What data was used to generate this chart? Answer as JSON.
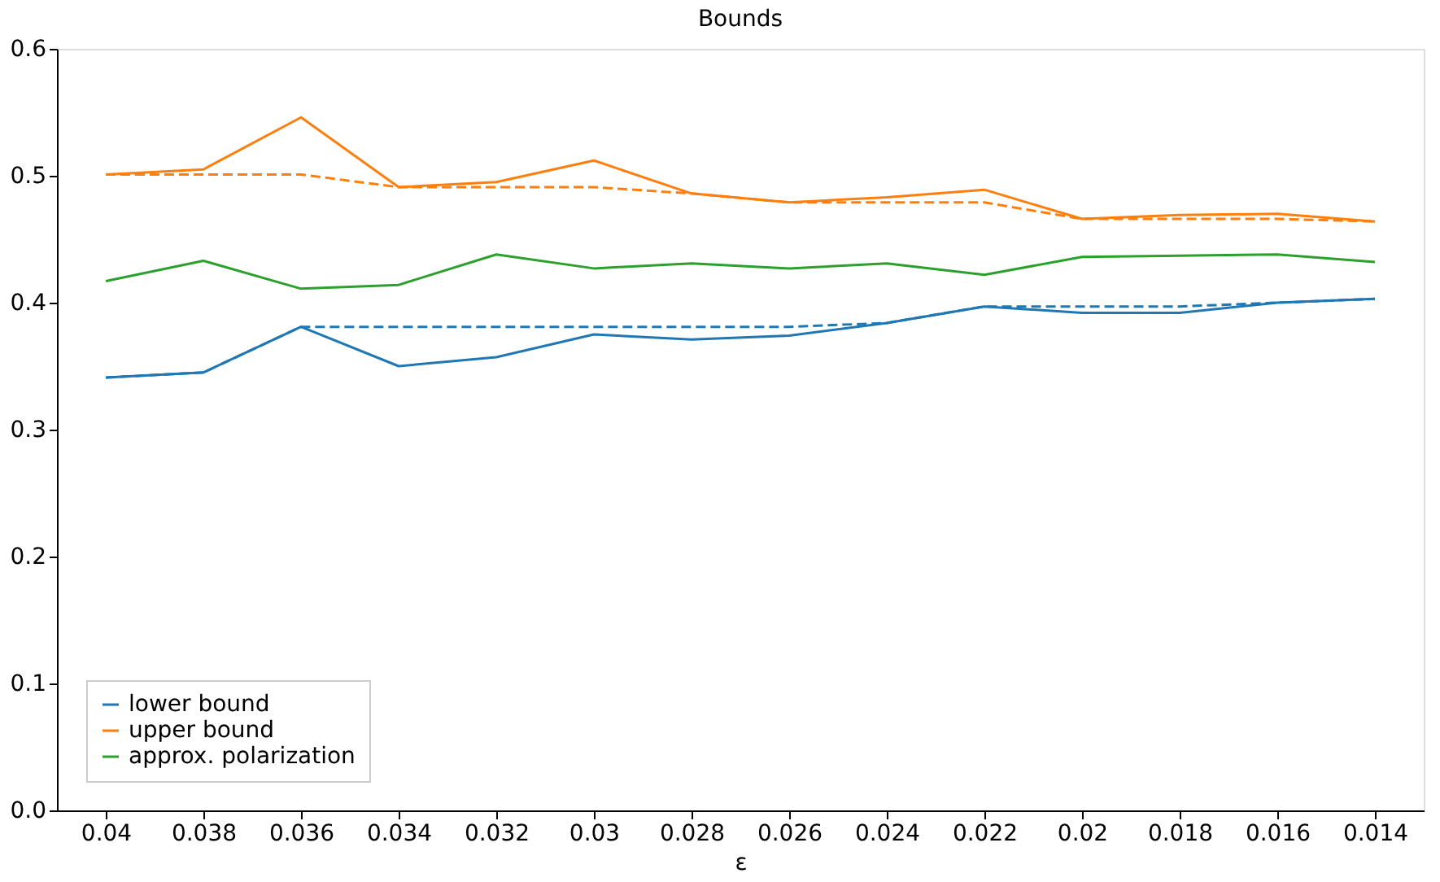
{
  "chart_data": {
    "type": "line",
    "title": "Bounds",
    "xlabel": "ε",
    "categories": [
      "0.04",
      "0.038",
      "0.036",
      "0.034",
      "0.032",
      "0.03",
      "0.028",
      "0.026",
      "0.024",
      "0.022",
      "0.02",
      "0.018",
      "0.016",
      "0.014"
    ],
    "series": [
      {
        "name": "lower bound",
        "color": "#1f77b4",
        "line_style": "solid",
        "values": [
          0.341,
          0.345,
          0.381,
          0.35,
          0.357,
          0.375,
          0.371,
          0.374,
          0.384,
          0.397,
          0.392,
          0.392,
          0.4,
          0.403
        ]
      },
      {
        "name": "upper bound",
        "color": "#ff7f0e",
        "line_style": "solid",
        "values": [
          0.501,
          0.505,
          0.546,
          0.491,
          0.495,
          0.512,
          0.486,
          0.479,
          0.483,
          0.489,
          0.466,
          0.469,
          0.47,
          0.464
        ]
      },
      {
        "name": "approx. polarization",
        "color": "#2ca02c",
        "line_style": "solid",
        "values": [
          0.417,
          0.433,
          0.411,
          0.414,
          0.438,
          0.427,
          0.431,
          0.427,
          0.431,
          0.422,
          0.436,
          0.437,
          0.438,
          0.432
        ]
      },
      {
        "color": "#1f77b4",
        "line_style": "dashed",
        "values": [
          0.341,
          0.345,
          0.381,
          0.381,
          0.381,
          0.381,
          0.381,
          0.381,
          0.384,
          0.397,
          0.397,
          0.397,
          0.4,
          0.403
        ]
      },
      {
        "color": "#ff7f0e",
        "line_style": "dashed",
        "values": [
          0.501,
          0.501,
          0.501,
          0.491,
          0.491,
          0.491,
          0.486,
          0.479,
          0.479,
          0.479,
          0.466,
          0.466,
          0.466,
          0.464
        ]
      }
    ],
    "ylim": [
      0,
      0.6
    ],
    "yticks": [
      {
        "value": 0,
        "label": "0.0"
      },
      0.1,
      0.2,
      0.3,
      0.4,
      0.5,
      0.6
    ],
    "grid": false,
    "legend": "bottom left"
  }
}
